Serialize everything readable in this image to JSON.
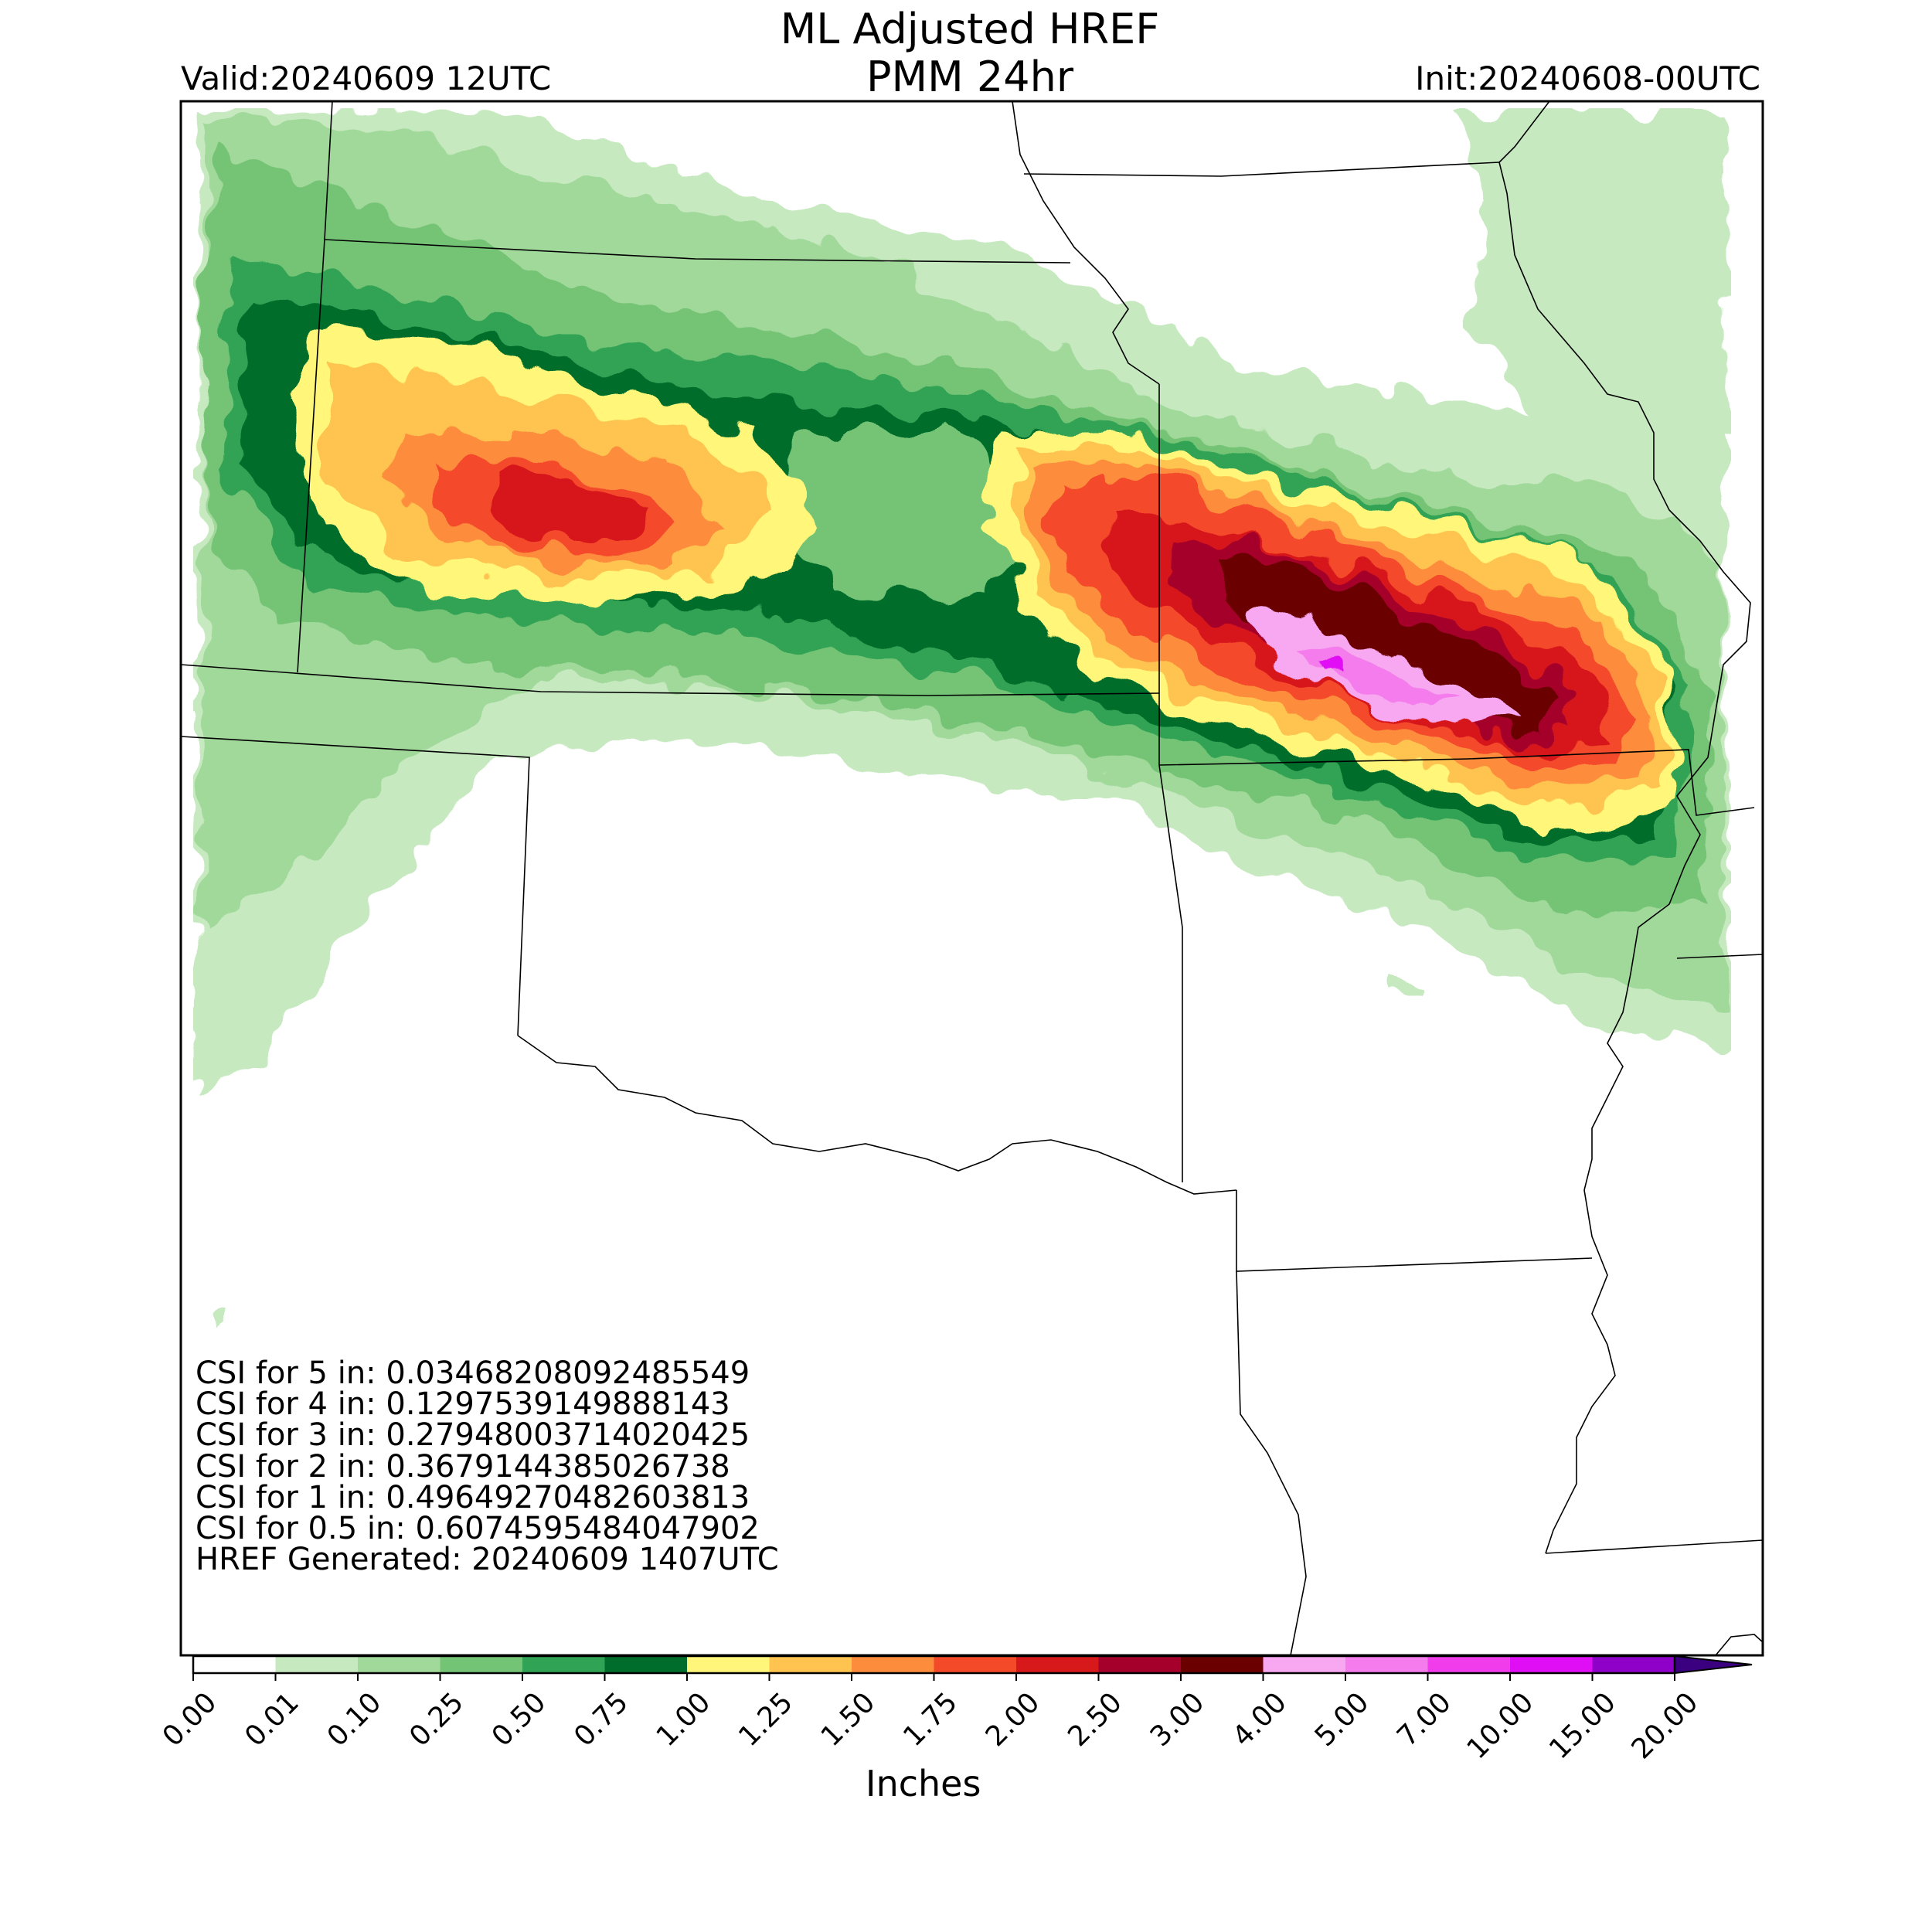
{
  "header": {
    "title_line1": "ML Adjusted HREF",
    "title_line2": "PMM 24hr",
    "valid": "Valid:20240609 12UTC",
    "init": "Init:20240608-00UTC"
  },
  "stats": {
    "lines": [
      "CSI for 5 in: 0.03468208092485549",
      "CSI for 4 in: 0.1297539149888143",
      "CSI for 3 in: 0.27948003714020425",
      "CSI for 2 in: 0.3679144385026738",
      "CSI for 1 in: 0.49649270482603813",
      "CSI for 0.5 in: 0.6074595484047902",
      "HREF Generated: 20240609 1407UTC"
    ]
  },
  "colorbar": {
    "label": "Inches",
    "ticks": [
      "0.00",
      "0.01",
      "0.10",
      "0.25",
      "0.50",
      "0.75",
      "1.00",
      "1.25",
      "1.50",
      "1.75",
      "2.00",
      "2.50",
      "3.00",
      "4.00",
      "5.00",
      "7.00",
      "10.00",
      "15.00",
      "20.00"
    ],
    "colors": [
      "#ffffff",
      "#c7e9c0",
      "#a1d99b",
      "#74c476",
      "#31a354",
      "#006d2c",
      "#fff67a",
      "#fec44f",
      "#fd8d3c",
      "#f44a2a",
      "#d7191c",
      "#a5002b",
      "#6b0000",
      "#f8a8f0",
      "#f47cec",
      "#f03ceb",
      "#e00ef5",
      "#8f00c8"
    ],
    "extend_color": "#3b0080"
  },
  "map": {
    "region": "Central Plains / Lower Missouri Valley",
    "features": [
      "state-boundaries",
      "precipitation-field"
    ]
  }
}
